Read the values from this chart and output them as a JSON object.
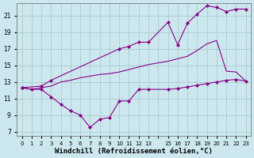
{
  "background_color": "#cce8ee",
  "grid_color": "#aacccc",
  "line_color": "#880088",
  "xlabel": "Windchill (Refroidissement éolien,°C)",
  "xlabel_fontsize": 6.5,
  "yticks": [
    7,
    9,
    11,
    13,
    15,
    17,
    19,
    21
  ],
  "xtick_labels": [
    "0",
    "1",
    "2",
    "3",
    "4",
    "5",
    "6",
    "7",
    "8",
    "9",
    "10",
    "11",
    "12",
    "13",
    "",
    "15",
    "16",
    "17",
    "18",
    "19",
    "20",
    "21",
    "22",
    "23"
  ],
  "xlim": [
    -0.5,
    23.5
  ],
  "ylim": [
    6.5,
    22.5
  ],
  "series": [
    {
      "x": [
        0,
        1,
        2,
        3,
        4,
        5,
        6,
        7,
        8,
        9,
        10,
        11,
        12,
        13,
        15,
        16,
        17,
        18,
        19,
        20,
        21,
        22,
        23
      ],
      "y": [
        12.3,
        12.1,
        12.1,
        11.2,
        10.3,
        9.5,
        9.0,
        7.5,
        8.5,
        8.7,
        10.7,
        10.7,
        12.1,
        12.1,
        12.1,
        12.2,
        12.4,
        12.6,
        12.8,
        13.0,
        13.2,
        13.3,
        13.1
      ],
      "markers_only_at": [
        0,
        1,
        2,
        3,
        4,
        5,
        6,
        7,
        8,
        9,
        10,
        11,
        12,
        13,
        15,
        16,
        17,
        18,
        19,
        20,
        21,
        22,
        23
      ]
    },
    {
      "x": [
        0,
        1,
        2,
        3,
        4,
        5,
        6,
        7,
        8,
        9,
        10,
        11,
        12,
        13,
        15,
        16,
        17,
        18,
        19,
        20,
        21,
        22,
        23
      ],
      "y": [
        12.3,
        12.1,
        12.3,
        12.5,
        13.0,
        13.2,
        13.5,
        13.7,
        13.9,
        14.0,
        14.2,
        14.5,
        14.8,
        15.1,
        15.5,
        15.8,
        16.1,
        16.8,
        17.6,
        18.0,
        14.3,
        14.2,
        13.1
      ],
      "markers_only_at": []
    },
    {
      "x": [
        0,
        2,
        3,
        10,
        11,
        12,
        13,
        15,
        16,
        17,
        18,
        19,
        20,
        21,
        22,
        23
      ],
      "y": [
        12.3,
        12.5,
        13.2,
        17.0,
        17.3,
        17.8,
        17.8,
        20.2,
        17.5,
        20.1,
        21.2,
        22.2,
        22.0,
        21.5,
        21.8,
        21.8
      ],
      "markers_only_at": [
        0,
        2,
        3,
        10,
        11,
        12,
        13,
        15,
        16,
        17,
        18,
        19,
        20,
        21,
        22,
        23
      ]
    }
  ]
}
